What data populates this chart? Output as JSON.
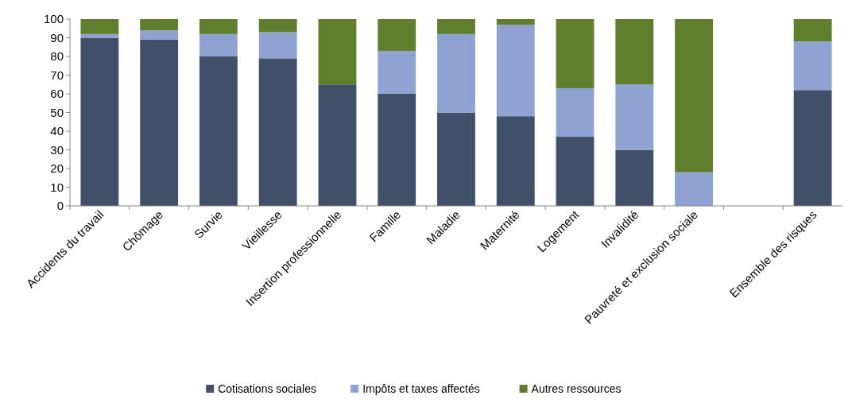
{
  "chart_data": {
    "type": "bar",
    "stacked": true,
    "categories": [
      "Accidents du travail",
      "Chômage",
      "Survie",
      "Vieillesse",
      "Insertion professionnelle",
      "Famille",
      "Maladie",
      "Maternité",
      "Logement",
      "Invalidité",
      "Pauvreté et exclusion sociale",
      null,
      "Ensemble des risques"
    ],
    "series": [
      {
        "name": "Cotisations sociales",
        "color": "#3f5068",
        "values": [
          90,
          89,
          80,
          79,
          65,
          60,
          50,
          48,
          37,
          30,
          0,
          null,
          62
        ]
      },
      {
        "name": "Impôts et taxes affectés",
        "color": "#8fa3d3",
        "values": [
          2,
          5,
          12,
          14,
          0,
          23,
          42,
          49,
          26,
          35,
          18,
          null,
          26
        ]
      },
      {
        "name": "Autres ressources",
        "color": "#5f7f2f",
        "values": [
          8,
          6,
          8,
          7,
          35,
          17,
          8,
          3,
          37,
          35,
          82,
          null,
          12
        ]
      }
    ],
    "ylim": [
      0,
      100
    ],
    "yticks": [
      0,
      10,
      20,
      30,
      40,
      50,
      60,
      70,
      80,
      90,
      100
    ],
    "grid": false,
    "legend": "bottom"
  }
}
